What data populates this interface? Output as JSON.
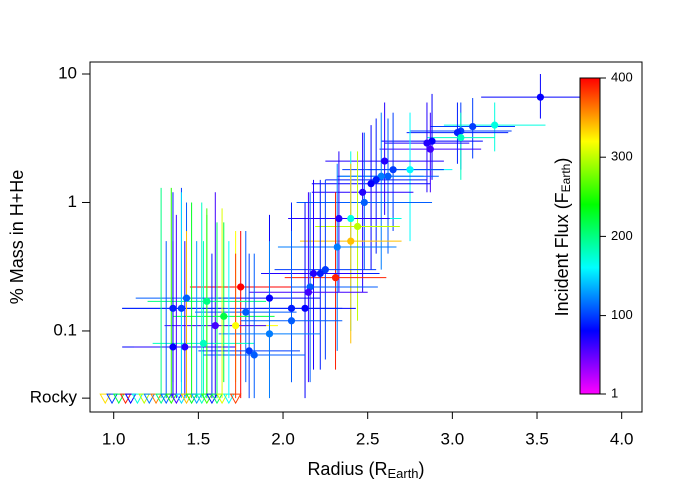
{
  "chart_data": {
    "type": "scatter",
    "x_label": {
      "text": "Radius (R",
      "sub": "Earth",
      "end": ")"
    },
    "y_label": "% Mass in H+He",
    "log_y": true,
    "xlim": [
      0.86,
      4.12
    ],
    "ylim": [
      0.0234,
      12.4
    ],
    "xticks": [
      {
        "value": 1,
        "label": "1.0"
      },
      1.5,
      {
        "value": 2,
        "label": "2.0"
      },
      2.5,
      {
        "value": 3,
        "label": "3.0"
      },
      3.5,
      {
        "value": 4,
        "label": "4.0"
      }
    ],
    "yticks": [
      {
        "value": 0.03,
        "label": "Rocky"
      },
      0.1,
      1,
      10
    ],
    "colorbar": {
      "label": {
        "text": "Incident Flux (F",
        "sub": "Earth",
        "end": ")"
      },
      "lim": [
        1,
        400
      ],
      "ticks": [
        1,
        100,
        200,
        300,
        400
      ],
      "colormap": [
        "#ff00ff",
        "#0000ff",
        "#00ffff",
        "#00ff00",
        "#ffff00",
        "#ff0000"
      ]
    },
    "points": {
      "x": [
        3.52,
        3.25,
        3.12,
        3.05,
        3.03,
        3.05,
        2.88,
        2.85,
        2.87,
        2.75,
        2.65,
        2.62,
        2.6,
        2.58,
        2.55,
        2.52,
        2.47,
        2.48,
        2.4,
        2.44,
        2.4,
        2.33,
        2.32,
        2.31,
        2.25,
        2.22,
        2.18,
        2.16,
        2.15,
        2.13,
        2.05,
        1.92,
        1.75,
        1.78,
        1.72,
        1.6,
        1.65,
        1.55,
        1.53,
        1.43,
        1.4,
        1.35,
        1.35,
        1.42,
        1.8,
        1.83,
        1.92,
        2.05
      ],
      "values": [
        6.6,
        4.0,
        3.9,
        3.6,
        3.5,
        3.2,
        3.0,
        2.9,
        2.6,
        1.8,
        1.8,
        1.6,
        2.1,
        1.6,
        1.5,
        1.4,
        1.2,
        1.0,
        0.75,
        0.65,
        0.5,
        0.75,
        0.45,
        0.26,
        0.3,
        0.28,
        0.28,
        0.22,
        0.2,
        0.15,
        0.15,
        0.18,
        0.22,
        0.14,
        0.11,
        0.11,
        0.13,
        0.17,
        0.08,
        0.18,
        0.15,
        0.15,
        0.075,
        0.075,
        0.07,
        0.065,
        0.095,
        0.12
      ],
      "xerr": [
        0.35,
        0.3,
        0.25,
        0.3,
        0.3,
        0.2,
        0.3,
        0.25,
        0.3,
        0.25,
        0.3,
        0.3,
        0.35,
        0.25,
        0.3,
        0.35,
        0.3,
        0.4,
        0.3,
        0.25,
        0.3,
        0.3,
        0.35,
        0.3,
        0.3,
        0.35,
        0.3,
        0.4,
        0.35,
        0.3,
        0.3,
        0.3,
        0.3,
        0.3,
        0.25,
        0.3,
        0.3,
        0.35,
        0.3,
        0.3,
        0.35,
        0.3,
        0.3,
        0.3,
        0.3,
        0.3,
        0.3,
        0.3
      ],
      "y_low": [
        4.5,
        2.5,
        2.2,
        1.8,
        2.0,
        1.5,
        1.5,
        1.2,
        1.2,
        0.5,
        0.6,
        0.4,
        0.8,
        0.3,
        0.4,
        0.3,
        0.2,
        0.3,
        0.1,
        0.12,
        0.08,
        0.2,
        0.07,
        0.05,
        0.06,
        0.05,
        0.05,
        0.04,
        0.04,
        0.03,
        0.04,
        0.05,
        0.03,
        0.04,
        0.04,
        0.03,
        0.04,
        0.03,
        0.03,
        0.04,
        0.04,
        0.04,
        0.03,
        0.03,
        0.03,
        0.03,
        0.03,
        0.04
      ],
      "y_high": [
        10,
        6,
        6.5,
        6,
        6,
        5,
        7,
        6,
        5,
        5,
        5,
        4.5,
        6,
        5,
        4.5,
        4,
        3.5,
        3.5,
        2.5,
        2.5,
        2,
        2.5,
        2,
        1.2,
        1.5,
        1.5,
        1.5,
        1.2,
        1.2,
        1.0,
        1.0,
        0.8,
        0.6,
        0.6,
        0.6,
        1.2,
        0.7,
        0.8,
        0.5,
        1.0,
        1.3,
        1.2,
        0.5,
        0.5,
        0.4,
        0.4,
        0.5,
        0.6
      ],
      "flux": [
        80,
        170,
        100,
        100,
        90,
        180,
        80,
        70,
        60,
        160,
        100,
        110,
        70,
        120,
        90,
        80,
        70,
        110,
        170,
        300,
        340,
        70,
        120,
        390,
        100,
        90,
        70,
        110,
        60,
        80,
        90,
        80,
        400,
        110,
        320,
        60,
        220,
        200,
        180,
        110,
        100,
        90,
        80,
        70,
        100,
        110,
        120,
        110
      ]
    },
    "rocky": {
      "x": [
        0.95,
        0.99,
        1.03,
        1.07,
        1.1,
        1.14,
        1.18,
        1.21,
        1.25,
        1.28,
        1.31,
        1.34,
        1.37,
        1.4,
        1.43,
        1.46,
        1.49,
        1.52,
        1.55,
        1.58,
        1.61,
        1.64,
        1.68,
        1.72
      ],
      "values": [
        0.03,
        0.03,
        0.03,
        0.03,
        0.03,
        0.03,
        0.03,
        0.03,
        0.03,
        0.03,
        0.03,
        0.03,
        0.03,
        0.03,
        0.03,
        0.03,
        0.03,
        0.03,
        0.03,
        0.03,
        0.03,
        0.03,
        0.03,
        0.03
      ],
      "y_high": [
        0.03,
        0.03,
        0.03,
        0.03,
        0.03,
        0.03,
        0.03,
        0.03,
        0.03,
        1.3,
        0.5,
        1.3,
        0.8,
        1.2,
        0.6,
        1.0,
        0.5,
        1.0,
        0.9,
        0.4,
        0.7,
        0.9,
        0.5,
        0.4
      ],
      "flux": [
        330,
        100,
        220,
        390,
        80,
        170,
        300,
        120,
        360,
        200,
        110,
        250,
        60,
        150,
        340,
        230,
        130,
        180,
        260,
        90,
        210,
        310,
        160,
        380
      ]
    }
  }
}
